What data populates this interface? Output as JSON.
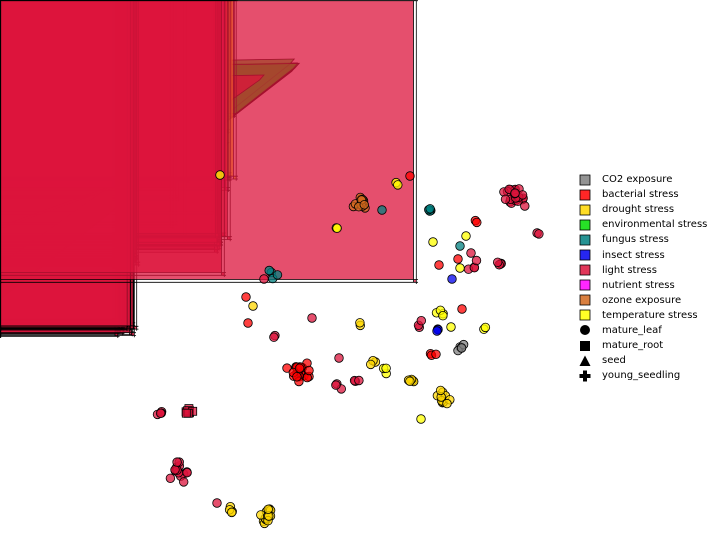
{
  "chart_data": {
    "type": "scatter",
    "title": "",
    "xlabel": "",
    "ylabel": "",
    "axes_visible": false,
    "grid": false,
    "legend_position": "right",
    "colors": {
      "CO2 exposure": "#808080",
      "bacterial stress": "#ff0000",
      "drought stress": "#ffd700",
      "environmental stress": "#00dd00",
      "fungus stress": "#008080",
      "insect stress": "#0000ee",
      "light stress": "#dc143c",
      "nutrient stress": "#ff00ff",
      "ozone exposure": "#d2691e",
      "temperature stress": "#ffff00"
    },
    "legend": [
      {
        "label": "CO2 exposure",
        "kind": "color",
        "value": "#808080"
      },
      {
        "label": "bacterial stress",
        "kind": "color",
        "value": "#ff0000"
      },
      {
        "label": "drought stress",
        "kind": "color",
        "value": "#ffd700"
      },
      {
        "label": "environmental stress",
        "kind": "color",
        "value": "#00dd00"
      },
      {
        "label": "fungus stress",
        "kind": "color",
        "value": "#008080"
      },
      {
        "label": "insect stress",
        "kind": "color",
        "value": "#0000ee"
      },
      {
        "label": "light stress",
        "kind": "color",
        "value": "#dc143c"
      },
      {
        "label": "nutrient stress",
        "kind": "color",
        "value": "#ff00ff"
      },
      {
        "label": "ozone exposure",
        "kind": "color",
        "value": "#d2691e"
      },
      {
        "label": "temperature stress",
        "kind": "color",
        "value": "#ffff00"
      },
      {
        "label": "mature_leaf",
        "kind": "shape",
        "value": "circle"
      },
      {
        "label": "mature_root",
        "kind": "shape",
        "value": "square"
      },
      {
        "label": "seed",
        "kind": "shape",
        "value": "triangle"
      },
      {
        "label": "young_seedling",
        "kind": "shape",
        "value": "plus"
      }
    ],
    "xlim": [
      0,
      575
    ],
    "ylim": [
      558,
      0
    ],
    "clusters": [
      {
        "stress": "bacterial stress",
        "tissue": "mature_root",
        "x": 45,
        "y": 60,
        "spread": 12,
        "n": 18
      },
      {
        "stress": "light stress",
        "tissue": "mature_root",
        "x": 38,
        "y": 56,
        "spread": 4,
        "n": 6
      },
      {
        "stress": "drought stress",
        "tissue": "mature_root",
        "x": 61,
        "y": 32,
        "spread": 0,
        "n": 1
      },
      {
        "stress": "nutrient stress",
        "tissue": "mature_root",
        "x": 65,
        "y": 77,
        "spread": 0,
        "n": 1
      },
      {
        "stress": "bacterial stress",
        "tissue": "mature_root",
        "x": 81,
        "y": 88,
        "spread": 0,
        "n": 1
      },
      {
        "stress": "nutrient stress",
        "tissue": "mature_root",
        "x": 78,
        "y": 56,
        "spread": 0,
        "n": 1
      },
      {
        "stress": "environmental stress",
        "tissue": "seed",
        "x": 297,
        "y": 67,
        "spread": 4,
        "n": 6
      },
      {
        "stress": "light stress",
        "tissue": "seed",
        "x": 264,
        "y": 80,
        "spread": 0,
        "n": 1
      },
      {
        "stress": "light stress",
        "tissue": "seed",
        "x": 228,
        "y": 146,
        "spread": 2,
        "n": 2
      },
      {
        "stress": "light stress",
        "tissue": "young_seedling",
        "x": 225,
        "y": 100,
        "spread": 6,
        "n": 6
      },
      {
        "stress": "light stress",
        "tissue": "young_seedling",
        "x": 190,
        "y": 95,
        "spread": 3,
        "n": 4
      },
      {
        "stress": "light stress",
        "tissue": "young_seedling",
        "x": 222,
        "y": 127,
        "spread": 9,
        "n": 8
      },
      {
        "stress": "temperature stress",
        "tissue": "young_seedling",
        "x": 195,
        "y": 122,
        "spread": 2,
        "n": 2
      },
      {
        "stress": "light stress",
        "tissue": "young_seedling",
        "x": 236,
        "y": 118,
        "spread": 0,
        "n": 1
      },
      {
        "stress": "light stress",
        "tissue": "young_seedling",
        "x": 186,
        "y": 150,
        "spread": 2,
        "n": 2
      },
      {
        "stress": "light stress",
        "tissue": "young_seedling",
        "x": 205,
        "y": 167,
        "spread": 5,
        "n": 4
      },
      {
        "stress": "light stress",
        "tissue": "young_seedling",
        "x": 164,
        "y": 168,
        "spread": 2,
        "n": 2
      },
      {
        "stress": "light stress",
        "tissue": "young_seedling",
        "x": 188,
        "y": 181,
        "spread": 4,
        "n": 4
      },
      {
        "stress": "light stress",
        "tissue": "young_seedling",
        "x": 180,
        "y": 200,
        "spread": 2,
        "n": 2
      },
      {
        "stress": "temperature stress",
        "tissue": "young_seedling",
        "x": 234,
        "y": 180,
        "spread": 4,
        "n": 3
      },
      {
        "stress": "nutrient stress",
        "tissue": "young_seedling",
        "x": 230,
        "y": 192,
        "spread": 0,
        "n": 1
      },
      {
        "stress": "light stress",
        "tissue": "young_seedling",
        "x": 218,
        "y": 216,
        "spread": 0,
        "n": 1
      },
      {
        "stress": "light stress",
        "tissue": "young_seedling",
        "x": 176,
        "y": 228,
        "spread": 3,
        "n": 3
      },
      {
        "stress": "light stress",
        "tissue": "young_seedling",
        "x": 188,
        "y": 243,
        "spread": 0,
        "n": 1
      },
      {
        "stress": "light stress",
        "tissue": "young_seedling",
        "x": 222,
        "y": 244,
        "spread": 9,
        "n": 12
      },
      {
        "stress": "light stress",
        "tissue": "young_seedling",
        "x": 132,
        "y": 262,
        "spread": 10,
        "n": 18
      },
      {
        "stress": "light stress",
        "tissue": "young_seedling",
        "x": 128,
        "y": 332,
        "spread": 10,
        "n": 18
      },
      {
        "stress": "light stress",
        "tissue": "young_seedling",
        "x": 226,
        "y": 277,
        "spread": 0,
        "n": 1
      },
      {
        "stress": "light stress",
        "tissue": "young_seedling",
        "x": 418,
        "y": 284,
        "spread": 0,
        "n": 1
      },
      {
        "stress": "temperature stress",
        "tissue": "mature_leaf",
        "x": 220,
        "y": 175,
        "spread": 0,
        "n": 1
      },
      {
        "stress": "temperature stress",
        "tissue": "mature_leaf",
        "x": 336,
        "y": 228,
        "spread": 2,
        "n": 2
      },
      {
        "stress": "ozone exposure",
        "tissue": "mature_leaf",
        "x": 360,
        "y": 203,
        "spread": 6,
        "n": 16
      },
      {
        "stress": "fungus stress",
        "tissue": "mature_leaf",
        "x": 430,
        "y": 210,
        "spread": 2,
        "n": 4
      },
      {
        "stress": "fungus stress",
        "tissue": "mature_leaf",
        "x": 382,
        "y": 210,
        "spread": 0,
        "n": 1
      },
      {
        "stress": "temperature stress",
        "tissue": "mature_leaf",
        "x": 398,
        "y": 185,
        "spread": 4,
        "n": 2
      },
      {
        "stress": "bacterial stress",
        "tissue": "mature_leaf",
        "x": 410,
        "y": 176,
        "spread": 0,
        "n": 1
      },
      {
        "stress": "light stress",
        "tissue": "mature_leaf",
        "x": 516,
        "y": 197,
        "spread": 11,
        "n": 26
      },
      {
        "stress": "light stress",
        "tissue": "mature_leaf",
        "x": 537,
        "y": 234,
        "spread": 2,
        "n": 2
      },
      {
        "stress": "bacterial stress",
        "tissue": "mature_leaf",
        "x": 477,
        "y": 220,
        "spread": 5,
        "n": 2
      },
      {
        "stress": "temperature stress",
        "tissue": "mature_leaf",
        "x": 466,
        "y": 236,
        "spread": 0,
        "n": 1
      },
      {
        "stress": "fungus stress",
        "tissue": "mature_leaf",
        "x": 460,
        "y": 246,
        "spread": 0,
        "n": 1
      },
      {
        "stress": "temperature stress",
        "tissue": "mature_leaf",
        "x": 433,
        "y": 242,
        "spread": 0,
        "n": 1
      },
      {
        "stress": "light stress",
        "tissue": "mature_leaf",
        "x": 471,
        "y": 253,
        "spread": 0,
        "n": 1
      },
      {
        "stress": "bacterial stress",
        "tissue": "mature_leaf",
        "x": 458,
        "y": 259,
        "spread": 0,
        "n": 1
      },
      {
        "stress": "light stress",
        "tissue": "mature_leaf",
        "x": 474,
        "y": 266,
        "spread": 5,
        "n": 4
      },
      {
        "stress": "light stress",
        "tissue": "mature_leaf",
        "x": 500,
        "y": 264,
        "spread": 3,
        "n": 4
      },
      {
        "stress": "bacterial stress",
        "tissue": "mature_leaf",
        "x": 439,
        "y": 265,
        "spread": 0,
        "n": 1
      },
      {
        "stress": "temperature stress",
        "tissue": "mature_leaf",
        "x": 460,
        "y": 268,
        "spread": 0,
        "n": 1
      },
      {
        "stress": "insect stress",
        "tissue": "mature_leaf",
        "x": 452,
        "y": 279,
        "spread": 0,
        "n": 1
      },
      {
        "stress": "fungus stress",
        "tissue": "mature_leaf",
        "x": 272,
        "y": 276,
        "spread": 5,
        "n": 4
      },
      {
        "stress": "light stress",
        "tissue": "mature_leaf",
        "x": 264,
        "y": 279,
        "spread": 0,
        "n": 1
      },
      {
        "stress": "bacterial stress",
        "tissue": "mature_leaf",
        "x": 246,
        "y": 297,
        "spread": 0,
        "n": 1
      },
      {
        "stress": "drought stress",
        "tissue": "mature_leaf",
        "x": 253,
        "y": 306,
        "spread": 0,
        "n": 1
      },
      {
        "stress": "bacterial stress",
        "tissue": "mature_leaf",
        "x": 248,
        "y": 323,
        "spread": 0,
        "n": 1
      },
      {
        "stress": "light stress",
        "tissue": "mature_leaf",
        "x": 312,
        "y": 318,
        "spread": 0,
        "n": 1
      },
      {
        "stress": "light stress",
        "tissue": "mature_leaf",
        "x": 273,
        "y": 337,
        "spread": 2,
        "n": 2
      },
      {
        "stress": "drought stress",
        "tissue": "mature_leaf",
        "x": 361,
        "y": 325,
        "spread": 2,
        "n": 2
      },
      {
        "stress": "temperature stress",
        "tissue": "mature_leaf",
        "x": 441,
        "y": 312,
        "spread": 6,
        "n": 4
      },
      {
        "stress": "bacterial stress",
        "tissue": "mature_leaf",
        "x": 462,
        "y": 309,
        "spread": 0,
        "n": 1
      },
      {
        "stress": "light stress",
        "tissue": "mature_leaf",
        "x": 418,
        "y": 324,
        "spread": 3,
        "n": 3
      },
      {
        "stress": "insect stress",
        "tissue": "mature_leaf",
        "x": 438,
        "y": 330,
        "spread": 3,
        "n": 3
      },
      {
        "stress": "temperature stress",
        "tissue": "mature_leaf",
        "x": 451,
        "y": 327,
        "spread": 0,
        "n": 1
      },
      {
        "stress": "temperature stress",
        "tissue": "mature_leaf",
        "x": 484,
        "y": 327,
        "spread": 2,
        "n": 2
      },
      {
        "stress": "CO2 exposure",
        "tissue": "mature_leaf",
        "x": 462,
        "y": 348,
        "spread": 4,
        "n": 5
      },
      {
        "stress": "bacterial stress",
        "tissue": "mature_leaf",
        "x": 433,
        "y": 355,
        "spread": 3,
        "n": 3
      },
      {
        "stress": "bacterial stress",
        "tissue": "mature_leaf",
        "x": 298,
        "y": 372,
        "spread": 10,
        "n": 26
      },
      {
        "stress": "light stress",
        "tissue": "mature_leaf",
        "x": 339,
        "y": 358,
        "spread": 0,
        "n": 1
      },
      {
        "stress": "light stress",
        "tissue": "mature_leaf",
        "x": 338,
        "y": 386,
        "spread": 3,
        "n": 3
      },
      {
        "stress": "light stress",
        "tissue": "mature_leaf",
        "x": 357,
        "y": 382,
        "spread": 3,
        "n": 3
      },
      {
        "stress": "drought stress",
        "tissue": "mature_leaf",
        "x": 374,
        "y": 364,
        "spread": 3,
        "n": 3
      },
      {
        "stress": "temperature stress",
        "tissue": "mature_leaf",
        "x": 386,
        "y": 371,
        "spread": 5,
        "n": 3
      },
      {
        "stress": "drought stress",
        "tissue": "mature_leaf",
        "x": 411,
        "y": 381,
        "spread": 3,
        "n": 5
      },
      {
        "stress": "drought stress",
        "tissue": "mature_leaf",
        "x": 444,
        "y": 397,
        "spread": 6,
        "n": 10
      },
      {
        "stress": "temperature stress",
        "tissue": "mature_leaf",
        "x": 421,
        "y": 419,
        "spread": 0,
        "n": 1
      },
      {
        "stress": "light stress",
        "tissue": "mature_leaf",
        "x": 160,
        "y": 412,
        "spread": 3,
        "n": 4
      },
      {
        "stress": "light stress",
        "tissue": "mature_root",
        "x": 189,
        "y": 412,
        "spread": 5,
        "n": 8
      },
      {
        "stress": "light stress",
        "tissue": "mature_leaf",
        "x": 179,
        "y": 472,
        "spread": 9,
        "n": 14
      },
      {
        "stress": "light stress",
        "tissue": "mature_leaf",
        "x": 217,
        "y": 503,
        "spread": 0,
        "n": 1
      },
      {
        "stress": "drought stress",
        "tissue": "mature_leaf",
        "x": 232,
        "y": 510,
        "spread": 3,
        "n": 4
      },
      {
        "stress": "drought stress",
        "tissue": "mature_leaf",
        "x": 267,
        "y": 516,
        "spread": 7,
        "n": 14
      }
    ]
  }
}
